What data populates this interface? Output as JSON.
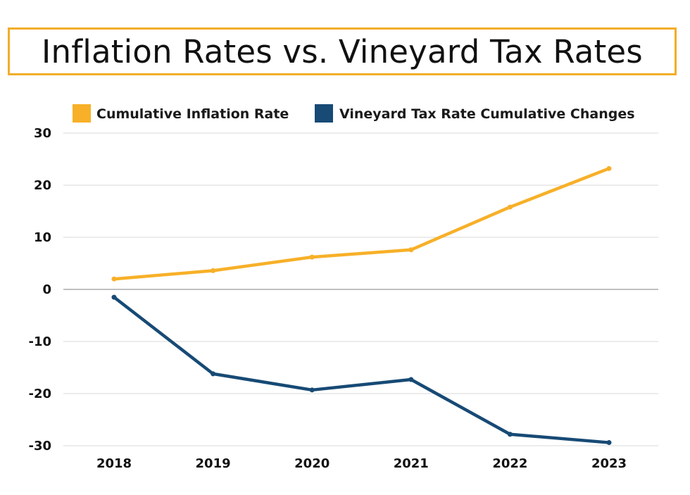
{
  "chart_data": {
    "type": "line",
    "title": "Inflation Rates vs. Vineyard Tax Rates",
    "categories": [
      "2018",
      "2019",
      "2020",
      "2021",
      "2022",
      "2023"
    ],
    "ylim": [
      -30,
      30
    ],
    "yticks": [
      "30",
      "20",
      "10",
      "0",
      "-10",
      "-20",
      "-30"
    ],
    "ytick_values": [
      30,
      20,
      10,
      0,
      -10,
      -20,
      -30
    ],
    "grid": true,
    "legend_position": "top",
    "series": [
      {
        "name": "Cumulative Inflation Rate",
        "color": "#f7b028",
        "values": [
          2.0,
          3.6,
          6.2,
          7.6,
          15.8,
          23.2
        ]
      },
      {
        "name": "Vineyard Tax Rate Cumulative Changes",
        "color": "#174a75",
        "values": [
          -1.5,
          -16.2,
          -19.3,
          -17.3,
          -27.8,
          -29.4
        ]
      }
    ]
  }
}
